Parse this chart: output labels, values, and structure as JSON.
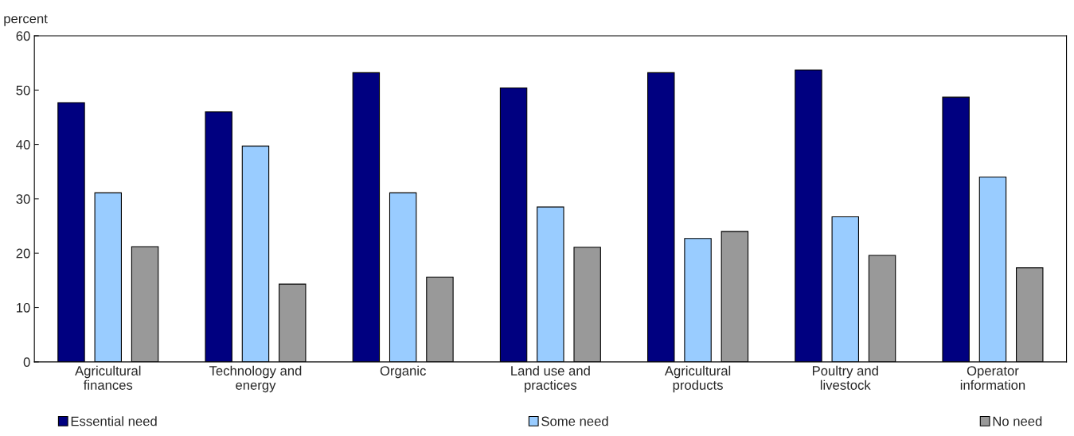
{
  "chart_data": {
    "type": "bar",
    "ylabel": "percent",
    "categories": [
      "Agricultural\nfinances",
      "Technology and\nenergy",
      "Organic",
      "Land use and\npractices",
      "Agricultural\nproducts",
      "Poultry and\nlivestock",
      "Operator\ninformation"
    ],
    "series": [
      {
        "name": "Essential need",
        "color": "#000080",
        "values": [
          47.7,
          46.0,
          53.2,
          50.4,
          53.2,
          53.7,
          48.7
        ]
      },
      {
        "name": "Some need",
        "color": "#99ccff",
        "values": [
          31.1,
          39.7,
          31.1,
          28.5,
          22.7,
          26.7,
          34.0
        ]
      },
      {
        "name": "No need",
        "color": "#999999",
        "values": [
          21.2,
          14.3,
          15.6,
          21.1,
          24.0,
          19.6,
          17.3
        ]
      }
    ],
    "ylim": [
      0,
      60
    ],
    "yticks": [
      0,
      10,
      20,
      30,
      40,
      50,
      60
    ],
    "grid": false,
    "legend": "bottom"
  }
}
